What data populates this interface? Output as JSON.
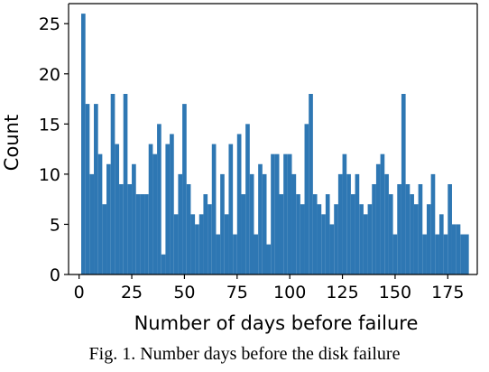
{
  "chart_data": {
    "type": "bar",
    "xlabel": "Number of days before failure",
    "ylabel": "Count",
    "xlim": [
      -5,
      189
    ],
    "ylim": [
      0,
      27
    ],
    "bin_width": 2,
    "bar_color": "#2e77b3",
    "x_ticks": [
      0,
      25,
      50,
      75,
      100,
      125,
      150,
      175
    ],
    "y_ticks": [
      0,
      5,
      10,
      15,
      20,
      25
    ],
    "bins_start": [
      1,
      3,
      5,
      7,
      9,
      11,
      13,
      15,
      17,
      19,
      21,
      23,
      25,
      27,
      29,
      31,
      33,
      35,
      37,
      39,
      41,
      43,
      45,
      47,
      49,
      51,
      53,
      55,
      57,
      59,
      61,
      63,
      65,
      67,
      69,
      71,
      73,
      75,
      77,
      79,
      81,
      83,
      85,
      87,
      89,
      91,
      93,
      95,
      97,
      99,
      101,
      103,
      105,
      107,
      109,
      111,
      113,
      115,
      117,
      119,
      121,
      123,
      125,
      127,
      129,
      131,
      133,
      135,
      137,
      139,
      141,
      143,
      145,
      147,
      149,
      151,
      153,
      155,
      157,
      159,
      161,
      163,
      165,
      167,
      169,
      171,
      173,
      175,
      177,
      179,
      181,
      183
    ],
    "values": [
      26,
      17,
      10,
      17,
      12,
      7,
      11,
      18,
      13,
      9,
      18,
      9,
      11,
      8,
      8,
      8,
      13,
      12,
      15,
      2,
      13,
      14,
      6,
      10,
      17,
      9,
      6,
      5,
      6,
      8,
      7,
      13,
      4,
      10,
      6,
      13,
      4,
      14,
      8,
      15,
      10,
      4,
      11,
      10,
      3,
      12,
      12,
      8,
      12,
      12,
      10,
      8,
      7,
      15,
      18,
      8,
      7,
      6,
      8,
      5,
      7,
      10,
      12,
      10,
      8,
      10,
      7,
      6,
      7,
      9,
      11,
      12,
      10,
      8,
      4,
      9,
      18,
      9,
      8,
      7,
      9,
      4,
      7,
      10,
      4,
      6,
      4,
      9,
      5,
      5,
      4,
      4
    ]
  },
  "caption": "Fig. 1. Number days before the disk failure"
}
